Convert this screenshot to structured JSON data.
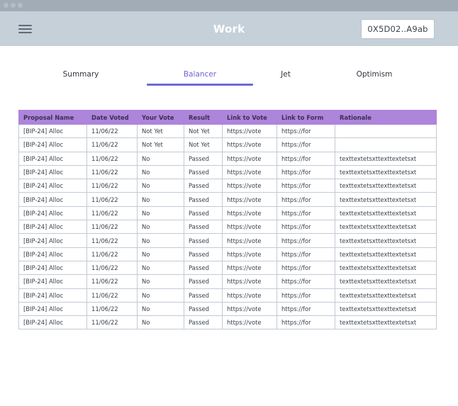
{
  "window": {
    "title_dots": [
      "close",
      "minimize",
      "maximize"
    ]
  },
  "appbar": {
    "menu_icon": "hamburger-icon",
    "title": "Work",
    "wallet_address": "0X5D02..A9ab"
  },
  "tabs": [
    {
      "label": "Summary",
      "active": false
    },
    {
      "label": "Balancer",
      "active": true
    },
    {
      "label": "Jet",
      "active": false
    },
    {
      "label": "Optimism",
      "active": false
    }
  ],
  "table": {
    "header_color": "#ad85db",
    "columns": [
      "Proposal Name",
      "Date Voted",
      "Your Vote",
      "Result",
      "Link to Vote",
      "Link to Form",
      "Rationale"
    ],
    "rows": [
      [
        "[BIP-24] Alloc",
        "11/06/22",
        "Not Yet",
        "Not Yet",
        "https://vote",
        "https://for",
        ""
      ],
      [
        "[BIP-24] Alloc",
        "11/06/22",
        "Not Yet",
        "Not Yet",
        "https://vote",
        "https://for",
        ""
      ],
      [
        "[BIP-24] Alloc",
        "11/06/22",
        "No",
        "Passed",
        "https://vote",
        "https://for",
        "texttextetsxttexttextetsxt"
      ],
      [
        "[BIP-24] Alloc",
        "11/06/22",
        "No",
        "Passed",
        "https://vote",
        "https://for",
        "texttextetsxttexttextetsxt"
      ],
      [
        "[BIP-24] Alloc",
        "11/06/22",
        "No",
        "Passed",
        "https://vote",
        "https://for",
        "texttextetsxttexttextetsxt"
      ],
      [
        "[BIP-24] Alloc",
        "11/06/22",
        "No",
        "Passed",
        "https://vote",
        "https://for",
        "texttextetsxttexttextetsxt"
      ],
      [
        "[BIP-24] Alloc",
        "11/06/22",
        "No",
        "Passed",
        "https://vote",
        "https://for",
        "texttextetsxttexttextetsxt"
      ],
      [
        "[BIP-24] Alloc",
        "11/06/22",
        "No",
        "Passed",
        "https://vote",
        "https://for",
        "texttextetsxttexttextetsxt"
      ],
      [
        "[BIP-24] Alloc",
        "11/06/22",
        "No",
        "Passed",
        "https://vote",
        "https://for",
        "texttextetsxttexttextetsxt"
      ],
      [
        "[BIP-24] Alloc",
        "11/06/22",
        "No",
        "Passed",
        "https://vote",
        "https://for",
        "texttextetsxttexttextetsxt"
      ],
      [
        "[BIP-24] Alloc",
        "11/06/22",
        "No",
        "Passed",
        "https://vote",
        "https://for",
        "texttextetsxttexttextetsxt"
      ],
      [
        "[BIP-24] Alloc",
        "11/06/22",
        "No",
        "Passed",
        "https://vote",
        "https://for",
        "texttextetsxttexttextetsxt"
      ],
      [
        "[BIP-24] Alloc",
        "11/06/22",
        "No",
        "Passed",
        "https://vote",
        "https://for",
        "texttextetsxttexttextetsxt"
      ],
      [
        "[BIP-24] Alloc",
        "11/06/22",
        "No",
        "Passed",
        "https://vote",
        "https://for",
        "texttextetsxttexttextetsxt"
      ],
      [
        "[BIP-24] Alloc",
        "11/06/22",
        "No",
        "Passed",
        "https://vote",
        "https://for",
        "texttextetsxttexttextetsxt"
      ]
    ]
  },
  "colors": {
    "accent": "#6f69d6",
    "appbar_bg": "#c5d0d9",
    "titlebar_bg": "#a1acb7",
    "table_header_bg": "#ad85db"
  }
}
